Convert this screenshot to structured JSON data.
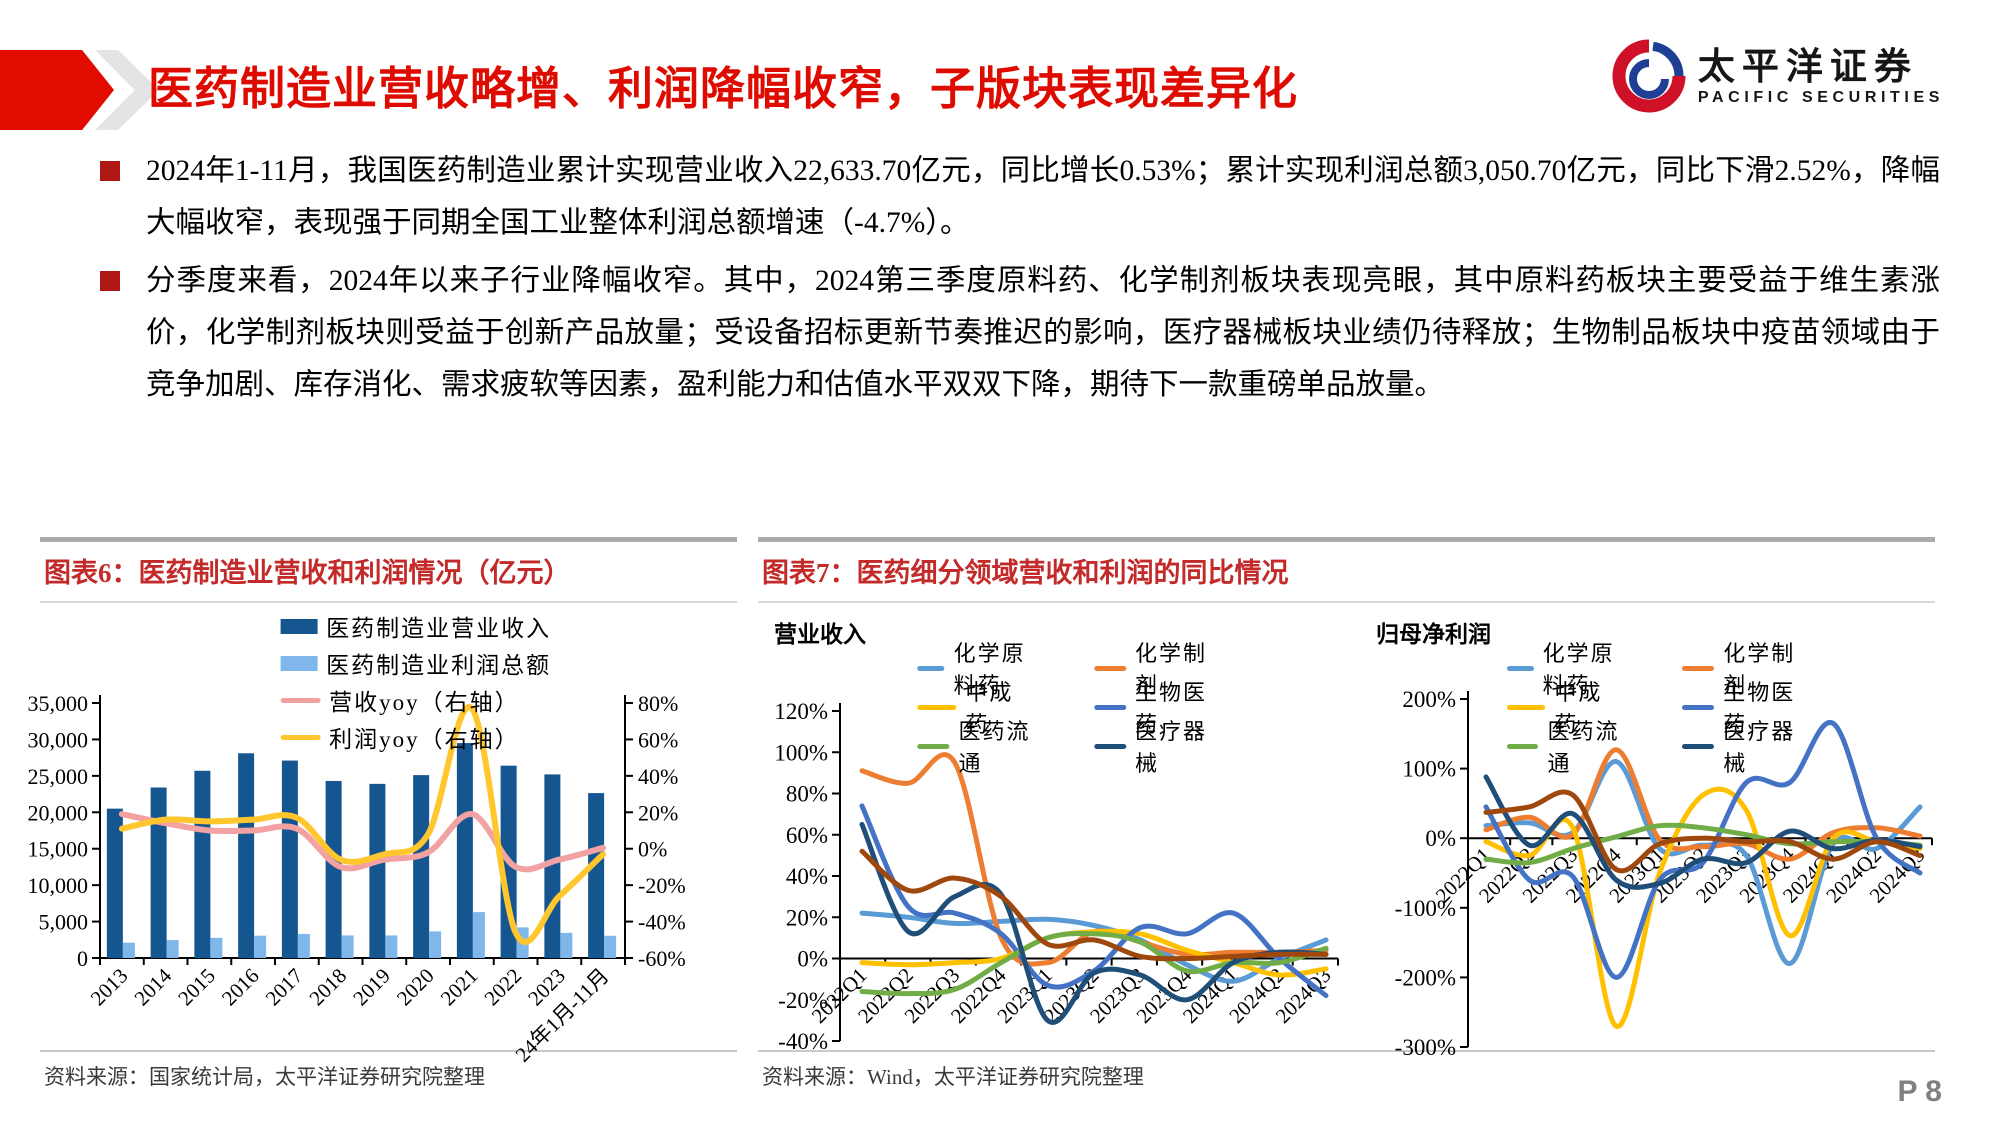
{
  "header": {
    "title": "医药制造业营收略增、利润降幅收窄，子版块表现差异化",
    "logo": {
      "cn": "太平洋证券",
      "en": "PACIFIC  SECURITIES"
    }
  },
  "bullets": [
    {
      "text": "2024年1-11月，我国医药制造业累计实现营业收入22,633.70亿元，同比增长0.53%；累计实现利润总额3,050.70亿元，同比下滑2.52%，降幅大幅收窄，表现强于同期全国工业整体利润总额增速（-4.7%）。"
    },
    {
      "text": "分季度来看，2024年以来子行业降幅收窄。其中，2024第三季度原料药、化学制剂板块表现亮眼，其中原料药板块主要受益于维生素涨价，化学制剂板块则受益于创新产品放量；受设备招标更新节奏推迟的影响，医疗器械板块业绩仍待释放；生物制品板块中疫苗领域由于竞争加剧、库存消化、需求疲软等因素，盈利能力和估值水平双双下降，期待下一款重磅单品放量。"
    }
  ],
  "fig6": {
    "caption": "图表6：医药制造业营收和利润情况（亿元）",
    "source": "资料来源：国家统计局，太平洋证券研究院整理"
  },
  "fig7": {
    "caption": "图表7：医药细分领域营收和利润的同比情况",
    "left_title": "营业收入",
    "right_title": "归母净利润",
    "source": "资料来源：Wind，太平洋证券研究院整理"
  },
  "page_number": "P 8",
  "colors": {
    "accent_red": "#DE0B00",
    "caption_red": "#C32A2A",
    "bullet_red": "#AE1714"
  },
  "chart_data": [
    {
      "id": "fig6",
      "type": "bar",
      "title": "医药制造业营收和利润情况（亿元）",
      "categories": [
        "2013",
        "2014",
        "2015",
        "2016",
        "2017",
        "2018",
        "2019",
        "2020",
        "2021",
        "2022",
        "2023",
        "24年1月-11月"
      ],
      "left_ylim": [
        0,
        35000
      ],
      "left_tick_step": 5000,
      "right_ylim": [
        -60,
        80
      ],
      "right_tick_step": 20,
      "right_suffix": "%",
      "series": [
        {
          "name": "医药制造业营业收入",
          "kind": "bar",
          "axis": "left",
          "color": "#155590",
          "values": [
            20500,
            23400,
            25700,
            28100,
            27100,
            24300,
            23900,
            25100,
            29500,
            26400,
            25200,
            22634
          ]
        },
        {
          "name": "医药制造业利润总额",
          "kind": "bar",
          "axis": "left",
          "color": "#7FB7EA",
          "values": [
            2100,
            2460,
            2770,
            3060,
            3300,
            3100,
            3100,
            3650,
            6300,
            4200,
            3450,
            3051
          ]
        },
        {
          "name": "营收yoy（右轴）",
          "kind": "line",
          "axis": "right",
          "color": "#F2A2A2",
          "values": [
            19,
            14,
            10,
            10,
            11,
            -10,
            -6,
            -2,
            19,
            -10,
            -6,
            0.5
          ]
        },
        {
          "name": "利润yoy（右轴）",
          "kind": "line",
          "axis": "right",
          "color": "#FFC62E",
          "values": [
            11,
            16,
            15,
            16,
            17,
            -6,
            -3,
            8,
            77,
            -46,
            -26,
            -3
          ]
        }
      ]
    },
    {
      "id": "fig7-left",
      "type": "line",
      "title": "营业收入",
      "x": [
        "2022Q1",
        "2022Q2",
        "2022Q3",
        "2022Q4",
        "2023Q1",
        "2023Q2",
        "2023Q3",
        "2023Q4",
        "2024Q1",
        "2024Q2",
        "2024Q3"
      ],
      "ylim": [
        -40,
        120
      ],
      "ytick": 20,
      "suffix": "%",
      "series": [
        {
          "name": "化学原料药",
          "color": "#5B9BD5",
          "values": [
            22,
            20,
            17,
            18,
            19,
            16,
            9,
            -3,
            -11,
            0,
            9
          ]
        },
        {
          "name": "化学制剂",
          "color": "#ED7D31",
          "values": [
            91,
            85,
            95,
            10,
            -2,
            13,
            8,
            2,
            3,
            3,
            4
          ]
        },
        {
          "name": "中成药",
          "color": "#FFC000",
          "values": [
            -2,
            -3,
            -2,
            0,
            10,
            13,
            12,
            4,
            -2,
            -8,
            -5
          ]
        },
        {
          "name": "生物医药",
          "color": "#4472C4",
          "values": [
            74,
            25,
            22,
            12,
            -13,
            -6,
            15,
            12,
            22,
            0,
            -18
          ]
        },
        {
          "name": "医药流通",
          "color": "#70AD47",
          "values": [
            -16,
            -17,
            -15,
            -2,
            10,
            12,
            8,
            -6,
            -2,
            -2,
            5
          ]
        },
        {
          "name": "医疗器械",
          "color": "#1F4E79",
          "values": [
            65,
            13,
            30,
            31,
            -30,
            -7,
            -8,
            -20,
            -2,
            3,
            2
          ]
        },
        {
          "name": "",
          "color": "#9E480E",
          "values": [
            52,
            33,
            39,
            30,
            7,
            9,
            1,
            0,
            1,
            2,
            2
          ]
        }
      ]
    },
    {
      "id": "fig7-right",
      "type": "line",
      "title": "归母净利润",
      "x": [
        "2022Q1",
        "2022Q2",
        "2022Q3",
        "2022Q4",
        "2023Q1",
        "2023Q2",
        "2023Q3",
        "2023Q4",
        "2024Q1",
        "2024Q2",
        "2024Q3"
      ],
      "ylim": [
        -300,
        200
      ],
      "ytick": 100,
      "suffix": "%",
      "series": [
        {
          "name": "化学原料药",
          "color": "#5B9BD5",
          "values": [
            18,
            22,
            8,
            110,
            -15,
            -10,
            -25,
            -180,
            -8,
            -15,
            45
          ]
        },
        {
          "name": "化学制剂",
          "color": "#ED7D31",
          "values": [
            12,
            30,
            5,
            127,
            -2,
            -12,
            -8,
            -30,
            8,
            15,
            3
          ]
        },
        {
          "name": "中成药",
          "color": "#FFC000",
          "values": [
            -5,
            -25,
            15,
            -270,
            -50,
            62,
            40,
            -140,
            0,
            -5,
            -15
          ]
        },
        {
          "name": "生物医药",
          "color": "#4472C4",
          "values": [
            45,
            -60,
            -55,
            -200,
            -60,
            -35,
            80,
            80,
            165,
            0,
            -50
          ]
        },
        {
          "name": "医药流通",
          "color": "#70AD47",
          "values": [
            -30,
            -35,
            -15,
            2,
            18,
            15,
            5,
            -8,
            -5,
            -5,
            -10
          ]
        },
        {
          "name": "医疗器械",
          "color": "#1F4E79",
          "values": [
            88,
            -10,
            35,
            -60,
            -65,
            -30,
            -35,
            10,
            -15,
            -3,
            -12
          ]
        },
        {
          "name": "",
          "color": "#9E480E",
          "values": [
            37,
            45,
            62,
            -45,
            -8,
            0,
            -5,
            -5,
            -30,
            -5,
            -25
          ]
        }
      ]
    }
  ]
}
